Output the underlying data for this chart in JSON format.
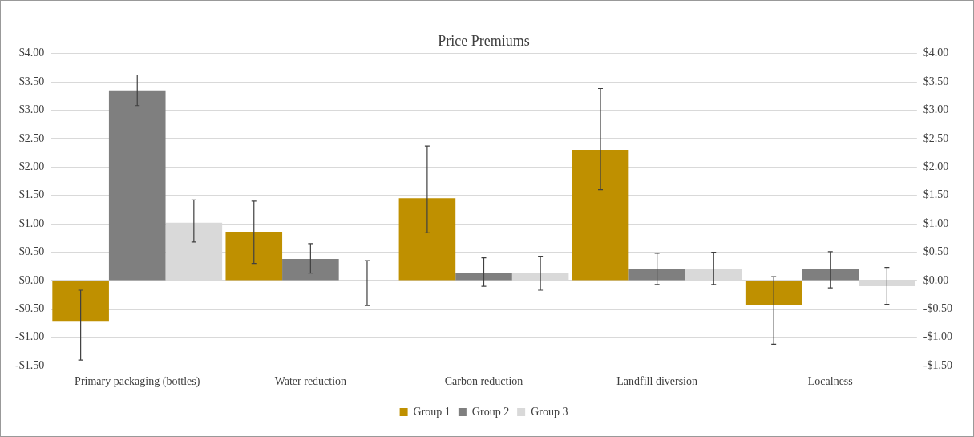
{
  "chart_data": {
    "type": "bar",
    "title": "Price Premiums",
    "categories": [
      "Primary packaging (bottles)",
      "Water reduction",
      "Carbon reduction",
      "Landfill diversion",
      "Localness"
    ],
    "series": [
      {
        "name": "Group 1",
        "color": "#bf9000",
        "values": [
          -0.71,
          0.86,
          1.45,
          2.3,
          -0.44
        ],
        "errors": [
          [
            -1.4,
            -0.17
          ],
          [
            0.3,
            1.4
          ],
          [
            0.84,
            2.37
          ],
          [
            1.6,
            3.38
          ],
          [
            -1.12,
            0.07
          ]
        ]
      },
      {
        "name": "Group 2",
        "color": "#7f7f7f",
        "values": [
          3.35,
          0.38,
          0.14,
          0.2,
          0.2
        ],
        "errors": [
          [
            3.08,
            3.62
          ],
          [
            0.13,
            0.65
          ],
          [
            -0.1,
            0.4
          ],
          [
            -0.07,
            0.48
          ],
          [
            -0.13,
            0.51
          ]
        ]
      },
      {
        "name": "Group 3",
        "color": "#d9d9d9",
        "values": [
          1.02,
          0,
          0.13,
          0.21,
          -0.1
        ],
        "errors": [
          [
            0.68,
            1.42
          ],
          [
            -0.44,
            0.35
          ],
          [
            -0.17,
            0.43
          ],
          [
            -0.07,
            0.5
          ],
          [
            -0.42,
            0.23
          ]
        ]
      }
    ],
    "ylim": [
      -1.5,
      4
    ],
    "yticks": [
      {
        "value": -1.5,
        "label": "-$1.50"
      },
      {
        "value": -1,
        "label": "-$1.00"
      },
      {
        "value": -0.5,
        "label": "-$0.50"
      },
      {
        "value": 0,
        "label": "$0.00"
      },
      {
        "value": 0.5,
        "label": "$0.50"
      },
      {
        "value": 1,
        "label": "$1.00"
      },
      {
        "value": 1.5,
        "label": "$1.50"
      },
      {
        "value": 2,
        "label": "$2.00"
      },
      {
        "value": 2.5,
        "label": "$2.50"
      },
      {
        "value": 3,
        "label": "$3.00"
      },
      {
        "value": 3.5,
        "label": "$3.50"
      },
      {
        "value": 4,
        "label": "$4.00"
      }
    ],
    "y2lim": [
      -1.5,
      4
    ],
    "y2ticks": [
      {
        "value": -1.5,
        "label": "-$1.50"
      },
      {
        "value": -1,
        "label": "-$1.00"
      },
      {
        "value": -0.5,
        "label": "-$0.50"
      },
      {
        "value": 0,
        "label": "$0.00"
      },
      {
        "value": 0.5,
        "label": "$0.50"
      },
      {
        "value": 1,
        "label": "$1.00"
      },
      {
        "value": 1.5,
        "label": "$1.50"
      },
      {
        "value": 2,
        "label": "$2.00"
      },
      {
        "value": 2.5,
        "label": "$2.50"
      },
      {
        "value": 3,
        "label": "$3.00"
      },
      {
        "value": 3.5,
        "label": "$3.50"
      },
      {
        "value": 4,
        "label": "$4.00"
      }
    ],
    "grid": "y",
    "legend": "bottom"
  }
}
